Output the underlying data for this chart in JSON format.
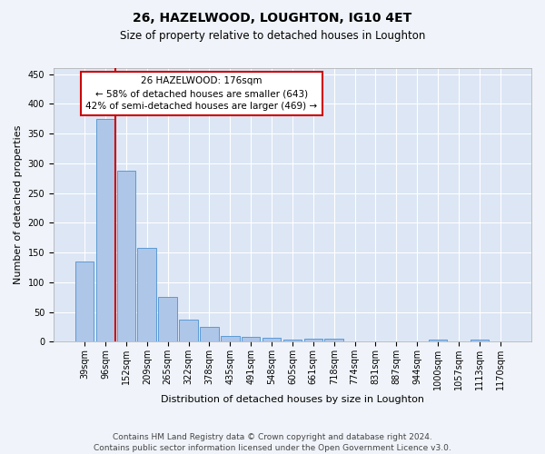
{
  "title": "26, HAZELWOOD, LOUGHTON, IG10 4ET",
  "subtitle": "Size of property relative to detached houses in Loughton",
  "xlabel": "Distribution of detached houses by size in Loughton",
  "ylabel": "Number of detached properties",
  "footnote1": "Contains HM Land Registry data © Crown copyright and database right 2024.",
  "footnote2": "Contains public sector information licensed under the Open Government Licence v3.0.",
  "bar_labels": [
    "39sqm",
    "96sqm",
    "152sqm",
    "209sqm",
    "265sqm",
    "322sqm",
    "378sqm",
    "435sqm",
    "491sqm",
    "548sqm",
    "605sqm",
    "661sqm",
    "718sqm",
    "774sqm",
    "831sqm",
    "887sqm",
    "944sqm",
    "1000sqm",
    "1057sqm",
    "1113sqm",
    "1170sqm"
  ],
  "bar_values": [
    135,
    375,
    287,
    158,
    75,
    37,
    25,
    10,
    8,
    6,
    3,
    5,
    5,
    0,
    0,
    0,
    0,
    3,
    0,
    3,
    0
  ],
  "bar_color": "#aec6e8",
  "bar_edge_color": "#5b9bd5",
  "vline_x_index": 2,
  "vline_color": "#cc0000",
  "annotation_line1": "26 HAZELWOOD: 176sqm",
  "annotation_line2": "← 58% of detached houses are smaller (643)",
  "annotation_line3": "42% of semi-detached houses are larger (469) →",
  "annotation_box_color": "#ffffff",
  "annotation_box_edge_color": "#cc0000",
  "ylim": [
    0,
    460
  ],
  "yticks": [
    0,
    50,
    100,
    150,
    200,
    250,
    300,
    350,
    400,
    450
  ],
  "background_color": "#f0f4fa",
  "plot_background_color": "#dce6f5",
  "grid_color": "#ffffff",
  "title_fontsize": 10,
  "subtitle_fontsize": 8.5,
  "ylabel_fontsize": 8,
  "xlabel_fontsize": 8,
  "tick_fontsize": 7,
  "annotation_fontsize": 7.5,
  "footnote_fontsize": 6.5
}
